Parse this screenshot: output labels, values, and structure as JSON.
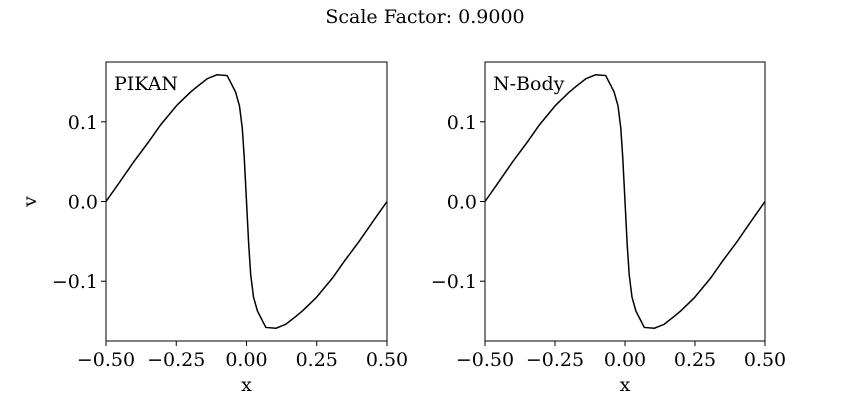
{
  "chart_data": {
    "suptitle": "Scale Factor: 0.9000",
    "panels": [
      {
        "type": "line",
        "label": "PIKAN",
        "xlabel": "x",
        "ylabel": "v",
        "xlim": [
          -0.5,
          0.5
        ],
        "ylim": [
          -0.175,
          0.175
        ],
        "xticks": [
          -0.5,
          -0.25,
          0.0,
          0.25,
          0.5
        ],
        "xtick_labels": [
          "−0.50",
          "−0.25",
          "0.00",
          "0.25",
          "0.50"
        ],
        "yticks": [
          0.1,
          0.0,
          -0.1
        ],
        "ytick_labels": [
          "0.1",
          "0.0",
          "−0.1"
        ],
        "grid": false,
        "color": "#000000",
        "x": [
          -0.5,
          -0.45,
          -0.401,
          -0.35,
          -0.306,
          -0.247,
          -0.2,
          -0.176,
          -0.14,
          -0.105,
          -0.069,
          -0.039,
          -0.025,
          -0.015,
          -0.008,
          0,
          0.008,
          0.015,
          0.025,
          0.039,
          0.069,
          0.105,
          0.14,
          0.176,
          0.2,
          0.247,
          0.306,
          0.35,
          0.401,
          0.45,
          0.5
        ],
        "y": [
          0,
          0.025,
          0.05,
          0.074,
          0.096,
          0.121,
          0.137,
          0.144,
          0.154,
          0.159,
          0.158,
          0.1375,
          0.12,
          0.092,
          0.055,
          0,
          -0.055,
          -0.092,
          -0.12,
          -0.1375,
          -0.158,
          -0.159,
          -0.154,
          -0.144,
          -0.137,
          -0.121,
          -0.096,
          -0.074,
          -0.05,
          -0.025,
          0
        ]
      },
      {
        "type": "line",
        "label": "N-Body",
        "xlabel": "x",
        "ylabel": "",
        "xlim": [
          -0.5,
          0.5
        ],
        "ylim": [
          -0.175,
          0.175
        ],
        "xticks": [
          -0.5,
          -0.25,
          0.0,
          0.25,
          0.5
        ],
        "xtick_labels": [
          "−0.50",
          "−0.25",
          "0.00",
          "0.25",
          "0.50"
        ],
        "yticks": [
          0.1,
          0.0,
          -0.1
        ],
        "ytick_labels": [
          "0.1",
          "0.0",
          "−0.1"
        ],
        "grid": false,
        "color": "#000000",
        "x": [
          -0.5,
          -0.45,
          -0.401,
          -0.35,
          -0.306,
          -0.247,
          -0.2,
          -0.176,
          -0.14,
          -0.105,
          -0.069,
          -0.039,
          -0.025,
          -0.015,
          -0.008,
          0,
          0.008,
          0.015,
          0.025,
          0.039,
          0.069,
          0.105,
          0.14,
          0.176,
          0.2,
          0.247,
          0.306,
          0.35,
          0.401,
          0.45,
          0.5
        ],
        "y": [
          0,
          0.025,
          0.05,
          0.074,
          0.096,
          0.121,
          0.137,
          0.144,
          0.154,
          0.159,
          0.158,
          0.1375,
          0.12,
          0.092,
          0.055,
          0,
          -0.055,
          -0.092,
          -0.12,
          -0.1375,
          -0.158,
          -0.159,
          -0.154,
          -0.144,
          -0.137,
          -0.121,
          -0.096,
          -0.074,
          -0.05,
          -0.025,
          0
        ]
      }
    ]
  }
}
